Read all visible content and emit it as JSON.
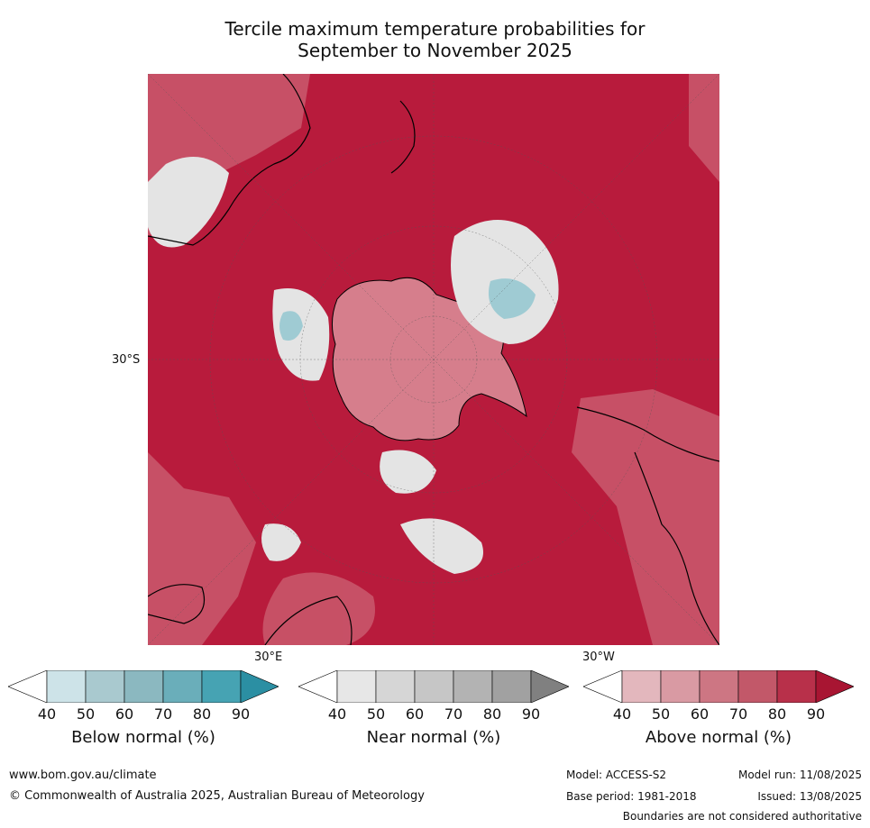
{
  "title": {
    "line1": "Tercile maximum temperature probabilities for",
    "line2": "September to November 2025"
  },
  "map": {
    "labels": {
      "lat_30s": "30°S",
      "lon_30e": "30°E",
      "lon_30w": "30°W"
    },
    "colors": {
      "ocean_above": "#b81b3c",
      "above_light": "#c9566a",
      "near": "#dcdcdc",
      "below": "#9fcbd3"
    }
  },
  "legends": [
    {
      "label": "Below normal (%)",
      "ticks": [
        "40",
        "50",
        "60",
        "70",
        "80",
        "90"
      ],
      "colors": [
        "#ffffff",
        "#cde3e8",
        "#a9c9cf",
        "#8bb8c0",
        "#6aaeba",
        "#46a3b3",
        "#2b8fa3"
      ]
    },
    {
      "label": "Near normal (%)",
      "ticks": [
        "40",
        "50",
        "60",
        "70",
        "80",
        "90"
      ],
      "colors": [
        "#ffffff",
        "#e7e7e7",
        "#d6d6d6",
        "#c6c6c6",
        "#b3b3b3",
        "#a1a1a1",
        "#808080"
      ]
    },
    {
      "label": "Above normal (%)",
      "ticks": [
        "40",
        "50",
        "60",
        "70",
        "80",
        "90"
      ],
      "colors": [
        "#ffffff",
        "#e3b7bd",
        "#d99aa3",
        "#cd7683",
        "#c25869",
        "#b8304a",
        "#a81532"
      ]
    }
  ],
  "footer": {
    "website": "www.bom.gov.au/climate",
    "copyright": "© Commonwealth of Australia 2025, Australian Bureau of Meteorology",
    "model": "Model: ACCESS-S2",
    "model_run": "Model run: 11/08/2025",
    "base_period": "Base period: 1981-2018",
    "issued": "Issued: 13/08/2025",
    "boundaries": "Boundaries are not considered authoritative"
  }
}
